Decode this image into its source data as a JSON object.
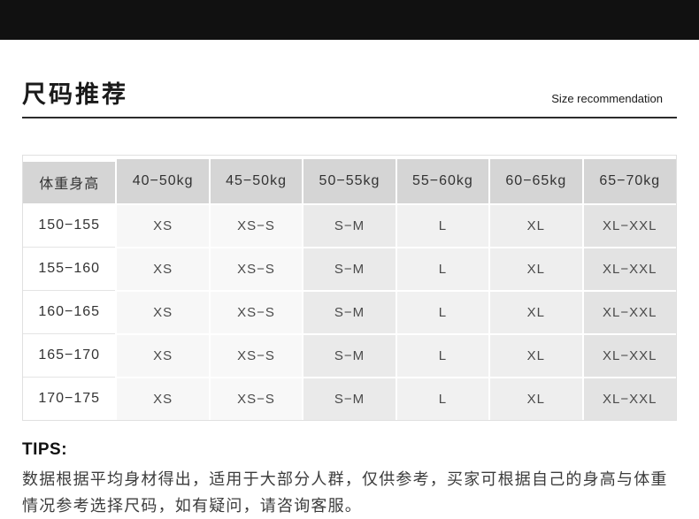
{
  "colors": {
    "top_bar": "#111111",
    "table_header_bg": "#d5d5d5",
    "column_backgrounds": [
      "#ffffff",
      "#f7f7f7",
      "#f8f8f8",
      "#eaeaea",
      "#f1f1f1",
      "#eeeeee",
      "#e3e3e3"
    ],
    "title_divider": "#2c2c2c"
  },
  "header": {
    "title": "尺码推荐",
    "subtitle": "Size recommendation"
  },
  "chart_data": {
    "type": "table",
    "title": "尺码推荐 (Size recommendation)",
    "columns": [
      "体重身高",
      "40−50kg",
      "45−50kg",
      "50−55kg",
      "55−60kg",
      "60−65kg",
      "65−70kg"
    ],
    "rows": [
      [
        "150−155",
        "XS",
        "XS−S",
        "S−M",
        "L",
        "XL",
        "XL−XXL"
      ],
      [
        "155−160",
        "XS",
        "XS−S",
        "S−M",
        "L",
        "XL",
        "XL−XXL"
      ],
      [
        "160−165",
        "XS",
        "XS−S",
        "S−M",
        "L",
        "XL",
        "XL−XXL"
      ],
      [
        "165−170",
        "XS",
        "XS−S",
        "S−M",
        "L",
        "XL",
        "XL−XXL"
      ],
      [
        "170−175",
        "XS",
        "XS−S",
        "S−M",
        "L",
        "XL",
        "XL−XXL"
      ]
    ],
    "layout": {
      "header_row_shaded": true,
      "grid": "white-gaps",
      "legend": "none"
    }
  },
  "tips": {
    "title": "TIPS:",
    "body": "数据根据平均身材得出，适用于大部分人群，仅供参考，买家可根据自己的身高与体重情况参考选择尺码，如有疑问，请咨询客服。"
  }
}
